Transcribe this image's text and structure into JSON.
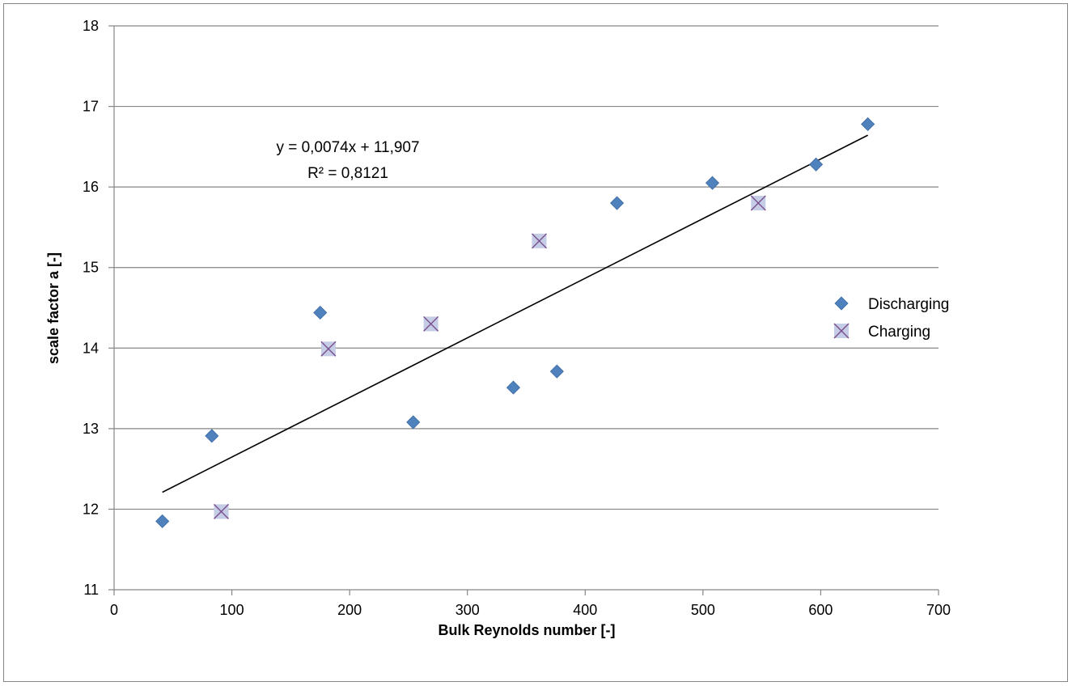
{
  "chart_data": {
    "type": "scatter",
    "title": "",
    "xlabel": "Bulk Reynolds number [-]",
    "ylabel": "scale factor a [-]",
    "xlim": [
      0,
      700
    ],
    "ylim": [
      11,
      18
    ],
    "x_ticks": [
      "0",
      "100",
      "200",
      "300",
      "400",
      "500",
      "600",
      "700"
    ],
    "y_ticks": [
      "11",
      "12",
      "13",
      "14",
      "15",
      "16",
      "17",
      "18"
    ],
    "grid": "horizontal major gridlines",
    "legend_position": "right",
    "series": [
      {
        "name": "Discharging",
        "marker": "diamond",
        "color": "#4f81bd",
        "points": [
          {
            "x": 41,
            "y": 11.85
          },
          {
            "x": 83,
            "y": 12.91
          },
          {
            "x": 175,
            "y": 14.44
          },
          {
            "x": 254,
            "y": 13.08
          },
          {
            "x": 339,
            "y": 13.51
          },
          {
            "x": 376,
            "y": 13.71
          },
          {
            "x": 427,
            "y": 15.8
          },
          {
            "x": 508,
            "y": 16.05
          },
          {
            "x": 596,
            "y": 16.28
          },
          {
            "x": 640,
            "y": 16.78
          }
        ]
      },
      {
        "name": "Charging",
        "marker": "x-square",
        "color": "#c5cce6",
        "stroke": "#7b4f8e",
        "points": [
          {
            "x": 91,
            "y": 11.97
          },
          {
            "x": 182,
            "y": 13.99
          },
          {
            "x": 269,
            "y": 14.3
          },
          {
            "x": 361,
            "y": 15.33
          },
          {
            "x": 547,
            "y": 15.8
          }
        ]
      }
    ],
    "trendline": {
      "type": "linear",
      "slope": 0.0074,
      "intercept": 11.907,
      "x_range": [
        41,
        640
      ],
      "equation_label": "y = 0,0074x + 11,907",
      "r2_label": "R² = 0,8121",
      "color": "#000000"
    }
  }
}
